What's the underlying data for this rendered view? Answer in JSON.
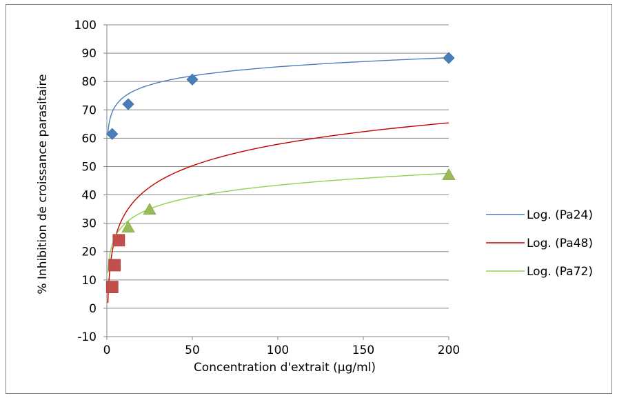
{
  "chart_data": {
    "type": "scatter",
    "title": "",
    "xlabel": "Concentration d'extrait (µg/ml)",
    "ylabel": "% Inhibition de croissance parasitaire",
    "xlim": [
      0,
      200
    ],
    "ylim": [
      -10,
      100
    ],
    "x_ticks": [
      "0",
      "50",
      "100",
      "150",
      "200"
    ],
    "y_ticks": [
      "-10",
      "0",
      "10",
      "20",
      "30",
      "40",
      "50",
      "60",
      "70",
      "80",
      "90",
      "100"
    ],
    "grid": "horizontal",
    "legend_position": "right",
    "series": [
      {
        "marker": "diamond",
        "color": "#4a7ebb",
        "points": [
          [
            3.125,
            61.5
          ],
          [
            12.5,
            72
          ],
          [
            50,
            80.7
          ],
          [
            200,
            88.3
          ]
        ],
        "trendline": {
          "name": "Log. (Pa24)",
          "type": "logarithmic",
          "color": "#4a7ebb",
          "a": 4.61,
          "b": 63.95
        }
      },
      {
        "marker": "square",
        "color": "#c0504d",
        "points": [
          [
            3.125,
            7.5
          ],
          [
            4.5,
            15.2
          ],
          [
            7,
            24
          ]
        ],
        "trendline": {
          "name": "Log. (Pa48)",
          "type": "logarithmic",
          "color": "#c00000",
          "a": 10.94,
          "b": 7.47
        }
      },
      {
        "marker": "triangle",
        "color": "#9bbb59",
        "points": [
          [
            12.5,
            28.5
          ],
          [
            25,
            34.8
          ],
          [
            200,
            47
          ]
        ],
        "trendline": {
          "name": "Log. (Pa72)",
          "type": "logarithmic",
          "color": "#92d050",
          "a": 6.04,
          "b": 15.6
        }
      }
    ]
  }
}
